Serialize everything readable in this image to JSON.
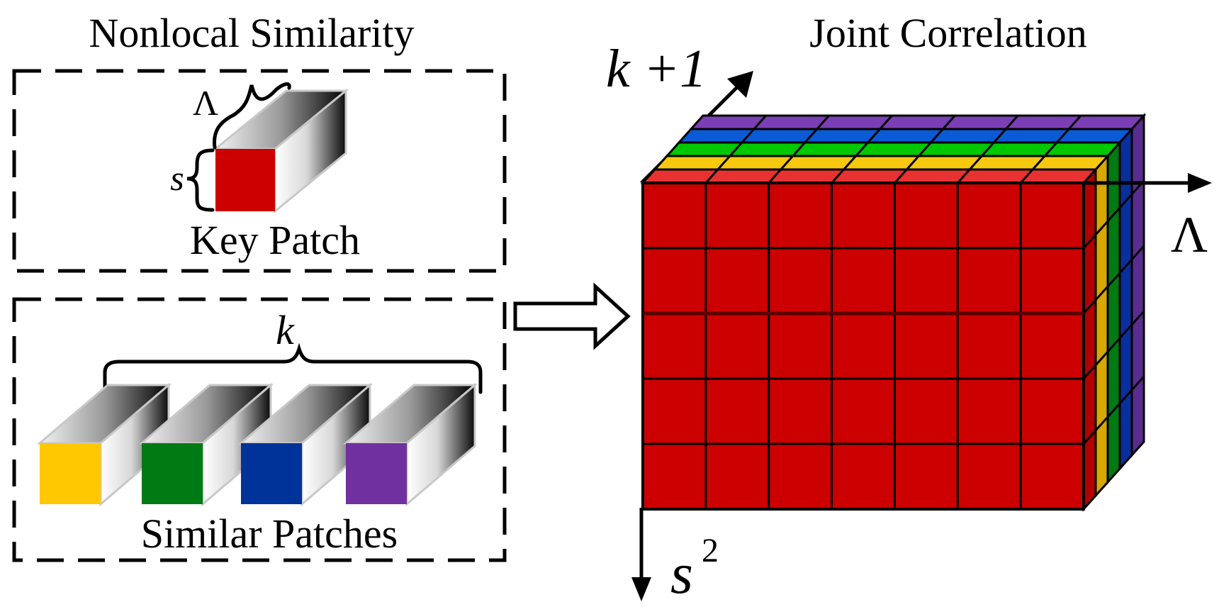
{
  "left_panel": {
    "title": "Nonlocal Similarity",
    "key_patch": {
      "label": "Key Patch",
      "depth_label": "Λ",
      "size_label": "s",
      "face_color": "#cc0000"
    },
    "similar_patches": {
      "label": "Similar Patches",
      "count_label": "k",
      "face_colors": [
        "#ffc800",
        "#007a12",
        "#003399",
        "#7030a0"
      ]
    }
  },
  "right_panel": {
    "title": "Joint Correlation",
    "axis_depth_label": "k +1",
    "axis_spectral_label": "Λ",
    "axis_vertical_label": "s",
    "axis_vertical_exponent": "2",
    "grid_columns": 7,
    "grid_rows": 5,
    "layer_colors": [
      "#7b3fb5",
      "#0a5ad6",
      "#00c800",
      "#f6c90e",
      "#e83232"
    ],
    "side_colors": [
      "#5b2c8f",
      "#0a2f9c",
      "#007a12",
      "#d6a800",
      "#b30000"
    ],
    "front_color": "#cc0000"
  },
  "arrow": {
    "style": "hollow",
    "direction": "right"
  }
}
